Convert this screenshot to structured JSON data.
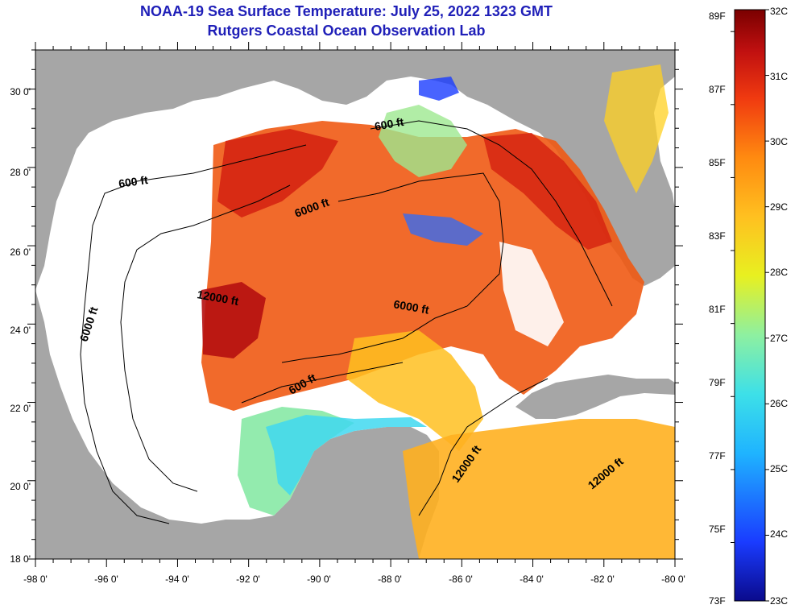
{
  "title": "NOAA-19 Sea Surface Temperature:  July 25, 2022 1323 GMT",
  "subtitle": "Rutgers Coastal Ocean Observation Lab",
  "map": {
    "lon_range": [
      -98,
      -80
    ],
    "lat_range": [
      18,
      31
    ],
    "lon_ticks": [
      "-98 0'",
      "-96 0'",
      "-94 0'",
      "-92 0'",
      "-90 0'",
      "-88 0'",
      "-86 0'",
      "-84 0'",
      "-82 0'",
      "-80 0'"
    ],
    "lat_ticks": [
      "30 0'",
      "28 0'",
      "26 0'",
      "24 0'",
      "22 0'",
      "20 0'",
      "18 0'"
    ],
    "land_color": "#a6a6a6",
    "contour_labels": [
      "600 ft",
      "600 ft",
      "6000 ft",
      "12000 ft",
      "6000 ft",
      "6000 ft",
      "600 ft",
      "12000 ft",
      "12000 ft"
    ]
  },
  "colorbar": {
    "fahrenheit_labels": [
      "89F",
      "87F",
      "85F",
      "83F",
      "81F",
      "79F",
      "77F",
      "75F",
      "73F"
    ],
    "celsius_labels": [
      "32C",
      "31C",
      "30C",
      "29C",
      "28C",
      "27C",
      "26C",
      "25C",
      "24C",
      "23C"
    ],
    "range_c": [
      23,
      32
    ],
    "colors": [
      "#0a0a8c",
      "#1a3cff",
      "#1fb4ff",
      "#3de0e8",
      "#8ef0a0",
      "#e8f020",
      "#ffc020",
      "#ff8a10",
      "#f03a10",
      "#c01010",
      "#7a0000"
    ]
  }
}
